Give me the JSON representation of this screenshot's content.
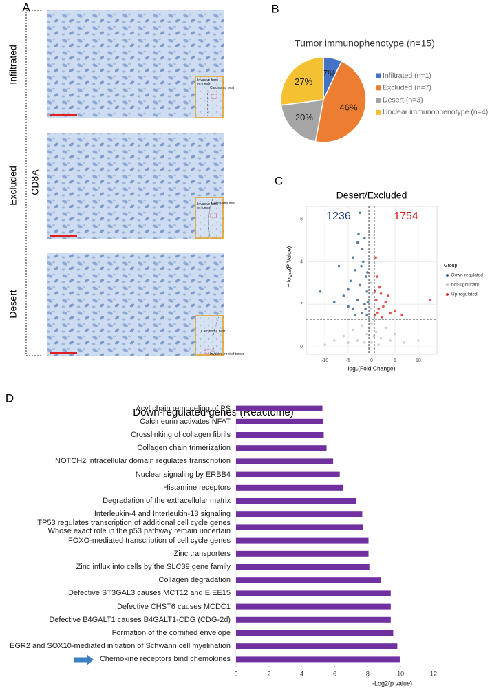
{
  "panel_a": {
    "label": "A",
    "stain": "CD8A",
    "rows": [
      {
        "label": "Infiltrated",
        "inset": [
          "Invasive front\nof tumor",
          "Carcinoma nest"
        ]
      },
      {
        "label": "Excluded",
        "inset": [
          "Invasive front\nof tumor",
          "Carcinoma nest"
        ]
      },
      {
        "label": "Desert",
        "inset": [
          "Carcinoma nest",
          "Invasive front of tumor"
        ]
      }
    ]
  },
  "chart_data": [
    {
      "type": "pie",
      "panel": "B",
      "title": "Tumor immunophenotype (n=15)",
      "categories": [
        "Infiltrated (n=1)",
        "Excluded (n=7)",
        "Desert (n=3)",
        "Unclear immunophenotype (n=4)"
      ],
      "values": [
        7,
        46,
        20,
        27
      ],
      "value_labels": [
        "7%",
        "46%",
        "20%",
        "27%"
      ],
      "colors": [
        "#4472c4",
        "#ed7d31",
        "#a5a5a5",
        "#f4c132"
      ],
      "legend": "right"
    },
    {
      "type": "scatter",
      "panel": "C",
      "title": "Desert/Excluded",
      "x_label": "log₂(Fold Change)",
      "y_label": "− log₁₀(P Value)",
      "legend_title": "Group",
      "legend": "right",
      "grid": true,
      "xlim": [
        -14,
        14
      ],
      "ylim": [
        -0.35,
        6.6
      ],
      "xticks": [
        -10,
        -5,
        0,
        5,
        10
      ],
      "yticks": [
        0,
        2,
        4,
        6
      ],
      "thresholds": {
        "x": [
          -0.58,
          0.58
        ],
        "y": 1.3
      },
      "annotations": [
        {
          "text": "1236",
          "color": "#1f3f7a"
        },
        {
          "text": "1754",
          "color": "#d62020"
        }
      ],
      "series": [
        {
          "name": "Down-regulated",
          "color": "#3a6795",
          "x": [
            -8,
            -7,
            -6,
            -5,
            -4.5,
            -4,
            -3.5,
            -3,
            -2.8,
            -2.5,
            -2,
            -1.5,
            -1.2,
            -1,
            -3,
            -2,
            -1.5,
            -4,
            -2.5,
            -1,
            -0.8,
            -3.5,
            -5,
            -1.8,
            -0.9,
            -11,
            -2.2,
            -1.3
          ],
          "values": [
            2.1,
            3.8,
            2.4,
            2.7,
            3.1,
            4.2,
            3.6,
            4.9,
            5.3,
            6.3,
            4.6,
            5.1,
            3.3,
            2.6,
            2.2,
            1.6,
            2,
            1.8,
            2.9,
            1.5,
            2.1,
            1.5,
            1.9,
            4,
            3.5,
            2.6,
            3.8,
            1.8
          ]
        },
        {
          "name": "not-significant",
          "color": "#c8c8c8",
          "x": [
            -6,
            -4,
            -3,
            -2,
            -1,
            0,
            0,
            1,
            2,
            3,
            4,
            5,
            7,
            -8,
            -0.3,
            0.2,
            -0.2,
            -10,
            -5,
            1.5,
            -1.5,
            0.5,
            -0.5,
            10
          ],
          "values": [
            0.5,
            0.8,
            0.3,
            1,
            0.6,
            0.2,
            1.1,
            0.7,
            0.4,
            0.9,
            0.3,
            0.6,
            0.2,
            0.3,
            1.8,
            2.5,
            3,
            0.1,
            0.2,
            0.1,
            0.2,
            0.5,
            0.9,
            0.3
          ]
        },
        {
          "name": "Up-regulated",
          "color": "#e03030",
          "x": [
            0.8,
            1,
            1.5,
            2,
            2.5,
            3,
            1.2,
            0.9,
            4,
            5,
            12.5,
            2.2,
            1.7,
            3.5,
            0.7,
            1.3,
            6.5
          ],
          "values": [
            1.5,
            2.2,
            1.8,
            2.5,
            1.9,
            2.1,
            3.3,
            4.2,
            1.6,
            1.7,
            2.2,
            1.4,
            2.8,
            2.4,
            2.6,
            1.6,
            1.5
          ]
        }
      ]
    },
    {
      "type": "bar",
      "orientation": "horizontal",
      "panel": "D",
      "title": "Down-regulated genes (Reactome)",
      "x_label": "-Log2(p value)",
      "color": "#7030a0",
      "xlim": [
        0,
        12
      ],
      "xticks": [
        0,
        2,
        4,
        6,
        8,
        10,
        12
      ],
      "categories": [
        "Acyl chain remodeling of PS",
        "Calcineurin activates NFAT",
        "Crosslinking of collagen fibrils",
        "Collagen chain trimerization",
        "NOTCH2 intracellular domain regulates transcription",
        "Nuclear signaling by ERBB4",
        "Histamine receptors",
        "Degradation of the extracellular matrix",
        "Interleukin-4 and Interleukin-13 signaling",
        "TP53 regulates transcription of additional cell cycle genes\nWhose exact role in the p53 pathway remain uncertain",
        "FOXO-mediated transcription of cell cycle genes",
        "Zinc transporters",
        "Zinc influx into cells by the SLC39 gene family",
        "Collagen degradation",
        "Defective ST3GAL3 causes MCT12 and EIEE15",
        "Defective CHST6 causes MCDC1",
        "Defective B4GALT1 causes B4GALT1-CDG (CDG-2d)",
        "Formation of the cornified envelope",
        "EGR2 and SOX10-mediated initiation of Schwann cell myelination",
        "Chemokine receptors bind chemokines"
      ],
      "values": [
        5.25,
        5.3,
        5.33,
        5.5,
        5.9,
        6.3,
        6.5,
        7.3,
        7.67,
        7.7,
        8.05,
        8.05,
        8.1,
        8.8,
        9.4,
        9.4,
        9.4,
        9.55,
        9.8,
        9.95
      ]
    }
  ]
}
